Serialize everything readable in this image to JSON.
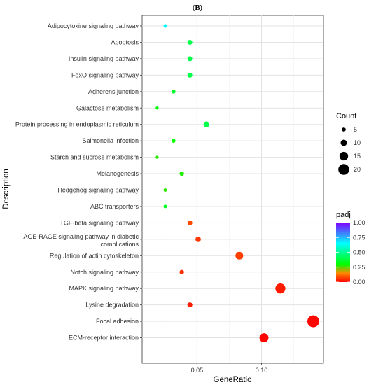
{
  "panel_label": "(B)",
  "chart_data": {
    "type": "scatter",
    "xlabel": "GeneRatio",
    "ylabel": "Description",
    "xlim": [
      0.0075,
      0.148
    ],
    "x_ticks": [
      0.05,
      0.1
    ],
    "x_tick_labels": [
      "0.05",
      "0.10"
    ],
    "grid": true,
    "legend_placement": "right",
    "categories": [
      "Adipocytokine signaling pathway",
      "Apoptosis",
      "Insulin signaling pathway",
      "FoxO signaling pathway",
      "Adherens junction",
      "Galactose metabolism",
      "Protein processing in endoplasmic reticulum",
      "Salmonella infection",
      "Starch and sucrose metabolism",
      "Melanogenesis",
      "Hedgehog signaling pathway",
      "ABC transporters",
      "TGF-beta signaling pathway",
      "AGE-RAGE signaling pathway in diabetic complications",
      "Regulation of actin cytoskeleton",
      "Notch signaling pathway",
      "MAPK signaling pathway",
      "Lysine degradation",
      "Focal adhesion",
      "ECM-receptor interaction"
    ],
    "points": [
      {
        "description": "Adipocytokine signaling pathway",
        "gene_ratio": 0.0254,
        "count": 4,
        "padj": 0.65
      },
      {
        "description": "Apoptosis",
        "gene_ratio": 0.0445,
        "count": 7,
        "padj": 0.4
      },
      {
        "description": "Insulin signaling pathway",
        "gene_ratio": 0.0445,
        "count": 7,
        "padj": 0.4
      },
      {
        "description": "FoxO signaling pathway",
        "gene_ratio": 0.0445,
        "count": 7,
        "padj": 0.4
      },
      {
        "description": "Adherens junction",
        "gene_ratio": 0.0318,
        "count": 5,
        "padj": 0.35
      },
      {
        "description": "Galactose metabolism",
        "gene_ratio": 0.0191,
        "count": 3,
        "padj": 0.3
      },
      {
        "description": "Protein processing in endoplasmic reticulum",
        "gene_ratio": 0.0573,
        "count": 9,
        "padj": 0.4
      },
      {
        "description": "Salmonella infection",
        "gene_ratio": 0.0318,
        "count": 5,
        "padj": 0.3
      },
      {
        "description": "Starch and sucrose metabolism",
        "gene_ratio": 0.0191,
        "count": 3,
        "padj": 0.28
      },
      {
        "description": "Melanogenesis",
        "gene_ratio": 0.0382,
        "count": 6,
        "padj": 0.28
      },
      {
        "description": "Hedgehog signaling pathway",
        "gene_ratio": 0.0254,
        "count": 4,
        "padj": 0.27
      },
      {
        "description": "ABC transporters",
        "gene_ratio": 0.0254,
        "count": 4,
        "padj": 0.35
      },
      {
        "description": "TGF-beta signaling pathway",
        "gene_ratio": 0.0445,
        "count": 7,
        "padj": 0.08
      },
      {
        "description": "AGE-RAGE signaling pathway in diabetic complications",
        "gene_ratio": 0.0509,
        "count": 8,
        "padj": 0.06
      },
      {
        "description": "Regulation of actin cytoskeleton",
        "gene_ratio": 0.0828,
        "count": 13,
        "padj": 0.07
      },
      {
        "description": "Notch signaling pathway",
        "gene_ratio": 0.0382,
        "count": 6,
        "padj": 0.05
      },
      {
        "description": "MAPK signaling pathway",
        "gene_ratio": 0.1146,
        "count": 18,
        "padj": 0.03
      },
      {
        "description": "Lysine degradation",
        "gene_ratio": 0.0445,
        "count": 7,
        "padj": 0.03
      },
      {
        "description": "Focal adhesion",
        "gene_ratio": 0.1401,
        "count": 22,
        "padj": 0.005
      },
      {
        "description": "ECM-receptor interaction",
        "gene_ratio": 0.1019,
        "count": 16,
        "padj": 0.003
      }
    ],
    "legend_count": {
      "title": "Count",
      "values": [
        5,
        10,
        15,
        20
      ]
    },
    "legend_padj": {
      "title": "padj",
      "ticks": [
        1.0,
        0.75,
        0.5,
        0.25,
        0.0
      ],
      "tick_labels": [
        "1.00",
        "0.75",
        "0.50",
        "0.25",
        "0.00"
      ]
    },
    "colors": {
      "panel_bg": "#ffffff",
      "grid": "#e8e8e8",
      "border": "#333333",
      "padj_0": "#ff0000",
      "padj_0_15": "#ff8800",
      "padj_0_3": "#00ff00",
      "padj_0_65": "#00ffff",
      "padj_1": "#8000ff"
    }
  }
}
